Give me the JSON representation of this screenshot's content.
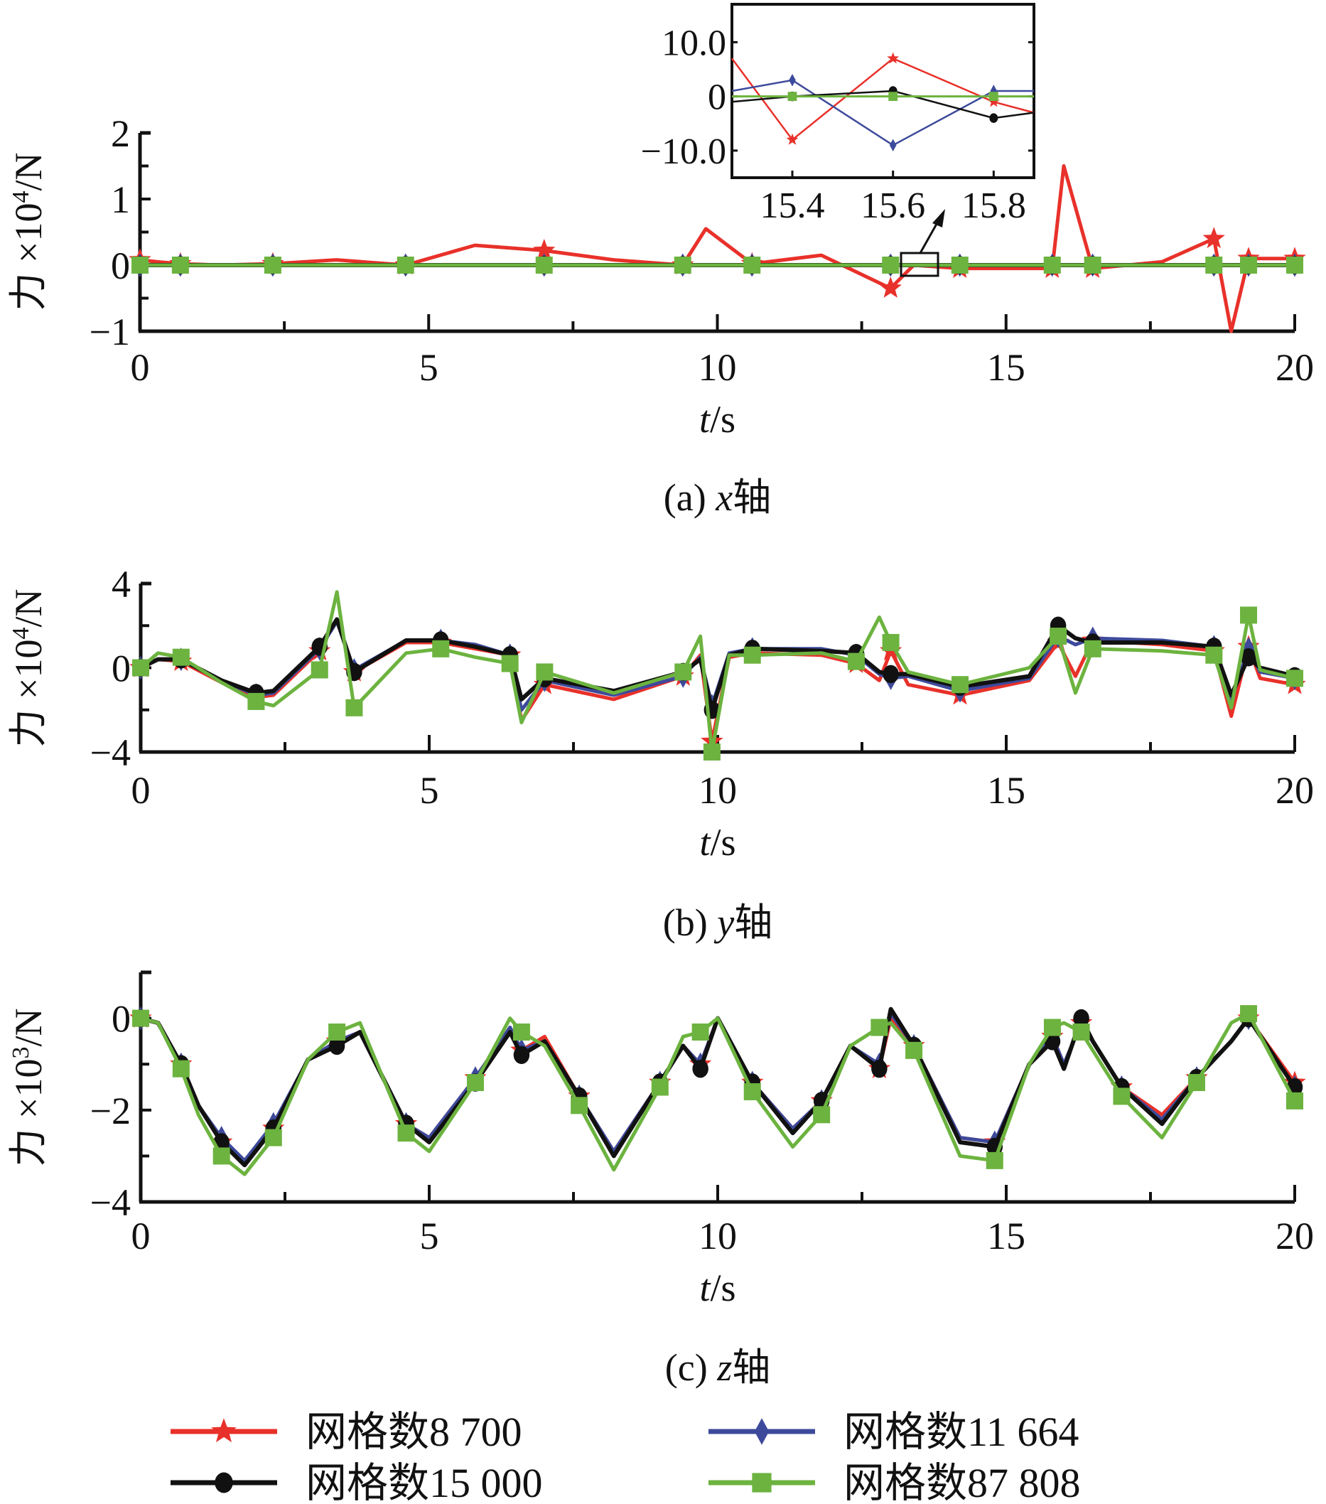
{
  "chart_data": [
    {
      "type": "line",
      "panel": "a",
      "caption_prefix": "(a) ",
      "caption_var": "x",
      "caption_suffix": "轴",
      "xlabel_var": "t",
      "xlabel_unit": "/s",
      "ylabel_prefix": "力 ×10",
      "ylabel_exp": "4",
      "ylabel_unit": "/N",
      "xlim": [
        0,
        20
      ],
      "ylim": [
        -1,
        2
      ],
      "xticks": [
        0,
        5,
        10,
        15,
        20
      ],
      "xtick_labels": [
        "0",
        "5",
        "10",
        "15",
        "20"
      ],
      "yticks": [
        -1,
        0,
        1,
        2
      ],
      "ytick_labels": [
        "−1",
        "0",
        "1",
        "2"
      ],
      "x": [
        0,
        0.3,
        0.7,
        1.4,
        2.3,
        3.4,
        4.6,
        5.8,
        7.0,
        8.2,
        9.4,
        9.8,
        10.6,
        11.8,
        13.0,
        13.4,
        14.2,
        15.4,
        15.8,
        16.0,
        16.5,
        17.7,
        18.6,
        18.9,
        19.2,
        20
      ],
      "series": [
        {
          "name": "网格数8 700",
          "values": [
            0.08,
            0.05,
            0.02,
            0.0,
            0.02,
            0.08,
            0.0,
            0.3,
            0.22,
            0.08,
            0.0,
            0.55,
            0.02,
            0.15,
            -0.35,
            0.0,
            -0.05,
            -0.05,
            -0.05,
            1.5,
            -0.05,
            0.05,
            0.4,
            -1.0,
            0.1,
            0.1
          ]
        },
        {
          "name": "网格数11 664",
          "values": [
            0,
            0,
            0,
            0,
            0,
            0,
            0,
            0,
            0,
            0,
            0,
            0,
            0,
            0,
            0,
            0,
            0,
            0,
            0,
            0,
            0,
            0,
            0,
            0,
            0,
            0
          ]
        },
        {
          "name": "网格数15 000",
          "values": [
            0,
            0,
            0,
            0,
            0,
            0,
            0,
            0,
            0,
            0,
            0,
            0,
            0,
            0,
            0,
            0,
            0,
            0,
            0,
            0,
            0,
            0,
            0,
            0,
            0,
            0
          ]
        },
        {
          "name": "网格数87 808",
          "values": [
            0,
            0,
            0,
            0,
            0,
            0,
            0,
            0,
            0,
            0,
            0,
            0,
            0,
            0,
            0,
            0,
            0,
            0,
            0,
            0,
            0,
            0,
            0,
            0,
            0,
            0
          ]
        }
      ],
      "inset": {
        "xlim": [
          15.28,
          15.88
        ],
        "ylim": [
          -15,
          17
        ],
        "xticks": [
          15.4,
          15.6,
          15.8
        ],
        "xtick_labels": [
          "15.4",
          "15.6",
          "15.8"
        ],
        "yticks": [
          10,
          0,
          -10
        ],
        "ytick_labels": [
          "10.0",
          "0",
          "−10.0"
        ],
        "x": [
          15.28,
          15.4,
          15.6,
          15.8,
          15.88
        ],
        "series": [
          {
            "name": "网格数8 700",
            "values": [
              7,
              -8,
              7,
              -1,
              -3
            ]
          },
          {
            "name": "网格数11 664",
            "values": [
              1,
              3,
              -9,
              1,
              1
            ]
          },
          {
            "name": "网格数15 000",
            "values": [
              -1,
              0,
              1,
              -4,
              -3
            ]
          },
          {
            "name": "网格数87 808",
            "values": [
              0,
              0,
              0,
              0,
              0
            ]
          }
        ]
      }
    },
    {
      "type": "line",
      "panel": "b",
      "caption_prefix": "(b) ",
      "caption_var": "y",
      "caption_suffix": "轴",
      "xlabel_var": "t",
      "xlabel_unit": "/s",
      "ylabel_prefix": "力 ×10",
      "ylabel_exp": "4",
      "ylabel_unit": "/N",
      "xlim": [
        0,
        20
      ],
      "ylim": [
        -4,
        4
      ],
      "xticks": [
        0,
        5,
        10,
        15,
        20
      ],
      "xtick_labels": [
        "0",
        "5",
        "10",
        "15",
        "20"
      ],
      "yticks": [
        -4,
        0,
        4
      ],
      "ytick_labels": [
        "−4",
        "0",
        "4"
      ],
      "x": [
        0,
        0.3,
        0.7,
        1.4,
        2.0,
        2.3,
        3.1,
        3.4,
        3.7,
        4.6,
        5.2,
        5.8,
        6.4,
        6.6,
        7.0,
        8.2,
        9.4,
        9.7,
        9.9,
        10.2,
        10.6,
        11.8,
        12.4,
        12.8,
        13.0,
        13.3,
        14.2,
        15.4,
        15.9,
        16.2,
        16.5,
        17.7,
        18.6,
        18.9,
        19.2,
        19.4,
        20
      ],
      "series": [
        {
          "name": "网格数8 700",
          "values": [
            0,
            0.4,
            0.3,
            -0.7,
            -1.4,
            -1.3,
            0.8,
            2.3,
            -0.2,
            1.2,
            1.2,
            0.9,
            0.6,
            -2.5,
            -0.8,
            -1.5,
            -0.4,
            0.6,
            -3.5,
            0.5,
            0.7,
            0.6,
            0.2,
            -0.6,
            0.8,
            -0.8,
            -1.3,
            -0.6,
            1.2,
            -0.4,
            1.3,
            1.1,
            0.8,
            -2.3,
            1.0,
            -0.5,
            -0.8
          ]
        },
        {
          "name": "网格数11 664",
          "values": [
            0,
            0.4,
            0.4,
            -0.6,
            -1.3,
            -1.2,
            0.9,
            2.2,
            -0.1,
            1.3,
            1.3,
            1.1,
            0.6,
            -2.0,
            -0.6,
            -1.3,
            -0.4,
            0.5,
            -1.8,
            0.7,
            0.9,
            0.9,
            0.6,
            -0.3,
            -0.5,
            -0.4,
            -1.1,
            -0.5,
            1.5,
            1.1,
            1.4,
            1.3,
            1.0,
            -1.5,
            0.9,
            -0.2,
            -0.5
          ]
        },
        {
          "name": "网格数15 000",
          "values": [
            0,
            0.4,
            0.4,
            -0.6,
            -1.2,
            -1.1,
            1.0,
            2.3,
            -0.2,
            1.3,
            1.3,
            1.0,
            0.6,
            -1.5,
            -0.5,
            -1.1,
            -0.2,
            0.4,
            -2.0,
            0.6,
            0.9,
            0.8,
            0.7,
            -0.2,
            -0.3,
            -0.3,
            -0.9,
            -0.4,
            2.0,
            1.4,
            1.2,
            1.2,
            1.0,
            -1.3,
            0.5,
            0.0,
            -0.4
          ]
        },
        {
          "name": "网格数87 808",
          "values": [
            0,
            0.7,
            0.5,
            -0.7,
            -1.6,
            -1.8,
            -0.1,
            3.6,
            -1.9,
            0.7,
            0.9,
            0.5,
            0.2,
            -2.6,
            -0.2,
            -1.2,
            -0.2,
            1.5,
            -4.0,
            0.6,
            0.6,
            0.7,
            0.3,
            2.4,
            1.2,
            -0.2,
            -0.8,
            0.0,
            1.5,
            -1.2,
            0.9,
            0.8,
            0.6,
            -1.9,
            2.5,
            -0.1,
            -0.5
          ]
        }
      ]
    },
    {
      "type": "line",
      "panel": "c",
      "caption_prefix": "(c) ",
      "caption_var": "z",
      "caption_suffix": "轴",
      "xlabel_var": "t",
      "xlabel_unit": "/s",
      "ylabel_prefix": "力 ×10",
      "ylabel_exp": "3",
      "ylabel_unit": "/N",
      "xlim": [
        0,
        20
      ],
      "ylim": [
        -4,
        1
      ],
      "xticks": [
        0,
        5,
        10,
        15,
        20
      ],
      "xtick_labels": [
        "0",
        "5",
        "10",
        "15",
        "20"
      ],
      "yticks": [
        -4,
        -2,
        0
      ],
      "ytick_labels": [
        "−4",
        "−2",
        "0"
      ],
      "x": [
        0,
        0.3,
        0.7,
        1.0,
        1.4,
        1.8,
        2.3,
        2.9,
        3.4,
        3.8,
        4.6,
        5.0,
        5.8,
        6.4,
        6.6,
        7.0,
        7.6,
        8.2,
        9.0,
        9.4,
        9.7,
        10.0,
        10.6,
        11.3,
        11.8,
        12.3,
        12.8,
        13.0,
        13.4,
        14.2,
        14.8,
        15.4,
        15.8,
        16.0,
        16.3,
        16.5,
        17.0,
        17.7,
        18.3,
        18.9,
        19.2,
        20
      ],
      "series": [
        {
          "name": "网格数8 700",
          "values": [
            0,
            -0.1,
            -1.0,
            -1.9,
            -2.7,
            -3.1,
            -2.4,
            -0.9,
            -0.5,
            -0.3,
            -2.3,
            -2.6,
            -1.3,
            -0.2,
            -0.7,
            -0.4,
            -1.7,
            -2.9,
            -1.4,
            -0.6,
            -1.0,
            0.0,
            -1.4,
            -2.4,
            -1.8,
            -0.6,
            -1.1,
            0.0,
            -0.6,
            -2.6,
            -2.7,
            -1.0,
            -0.4,
            -1.0,
            -0.1,
            -0.5,
            -1.5,
            -2.1,
            -1.3,
            -0.5,
            0.0,
            -1.4
          ]
        },
        {
          "name": "网格数11 664",
          "values": [
            0,
            -0.1,
            -1.0,
            -1.9,
            -2.6,
            -3.1,
            -2.3,
            -0.9,
            -0.5,
            -0.3,
            -2.3,
            -2.6,
            -1.3,
            -0.2,
            -0.7,
            -0.5,
            -1.7,
            -2.9,
            -1.4,
            -0.6,
            -1.0,
            0.0,
            -1.4,
            -2.4,
            -1.8,
            -0.6,
            -1.0,
            0.1,
            -0.6,
            -2.6,
            -2.7,
            -1.0,
            -0.4,
            -1.0,
            -0.1,
            -0.5,
            -1.5,
            -2.2,
            -1.3,
            -0.5,
            0.0,
            -1.5
          ]
        },
        {
          "name": "网格数15 000",
          "values": [
            0,
            -0.1,
            -1.0,
            -1.9,
            -2.7,
            -3.2,
            -2.4,
            -0.9,
            -0.6,
            -0.3,
            -2.3,
            -2.7,
            -1.4,
            -0.3,
            -0.8,
            -0.5,
            -1.7,
            -3.0,
            -1.4,
            -0.6,
            -1.1,
            0.0,
            -1.4,
            -2.5,
            -1.8,
            -0.6,
            -1.1,
            0.2,
            -0.6,
            -2.7,
            -2.8,
            -1.0,
            -0.5,
            -1.1,
            0.0,
            -0.5,
            -1.5,
            -2.3,
            -1.3,
            -0.5,
            0.0,
            -1.5
          ]
        },
        {
          "name": "网格数87 808",
          "values": [
            0,
            -0.1,
            -1.1,
            -2.1,
            -3.0,
            -3.4,
            -2.6,
            -0.9,
            -0.3,
            -0.1,
            -2.5,
            -2.9,
            -1.4,
            0.0,
            -0.3,
            -0.6,
            -1.9,
            -3.3,
            -1.5,
            -0.4,
            -0.3,
            0.0,
            -1.6,
            -2.8,
            -2.1,
            -0.6,
            -0.2,
            -0.1,
            -0.7,
            -3.0,
            -3.1,
            -1.0,
            -0.2,
            -0.1,
            -0.3,
            -0.7,
            -1.7,
            -2.6,
            -1.4,
            -0.1,
            0.1,
            -1.8
          ]
        }
      ]
    }
  ],
  "legend": {
    "placement": "bottom",
    "items": [
      {
        "label": "网格数8 700",
        "color": "#e8312a",
        "marker": "star"
      },
      {
        "label": "网格数11 664",
        "color": "#3d4a9b",
        "marker": "diamond"
      },
      {
        "label": "网格数15 000",
        "color": "#111111",
        "marker": "circle"
      },
      {
        "label": "网格数87 808",
        "color": "#6cb33f",
        "marker": "square"
      }
    ]
  },
  "colors": {
    "red": "#e8312a",
    "blue": "#3d4a9b",
    "black": "#111111",
    "green": "#6cb33f",
    "axis": "#111111"
  }
}
